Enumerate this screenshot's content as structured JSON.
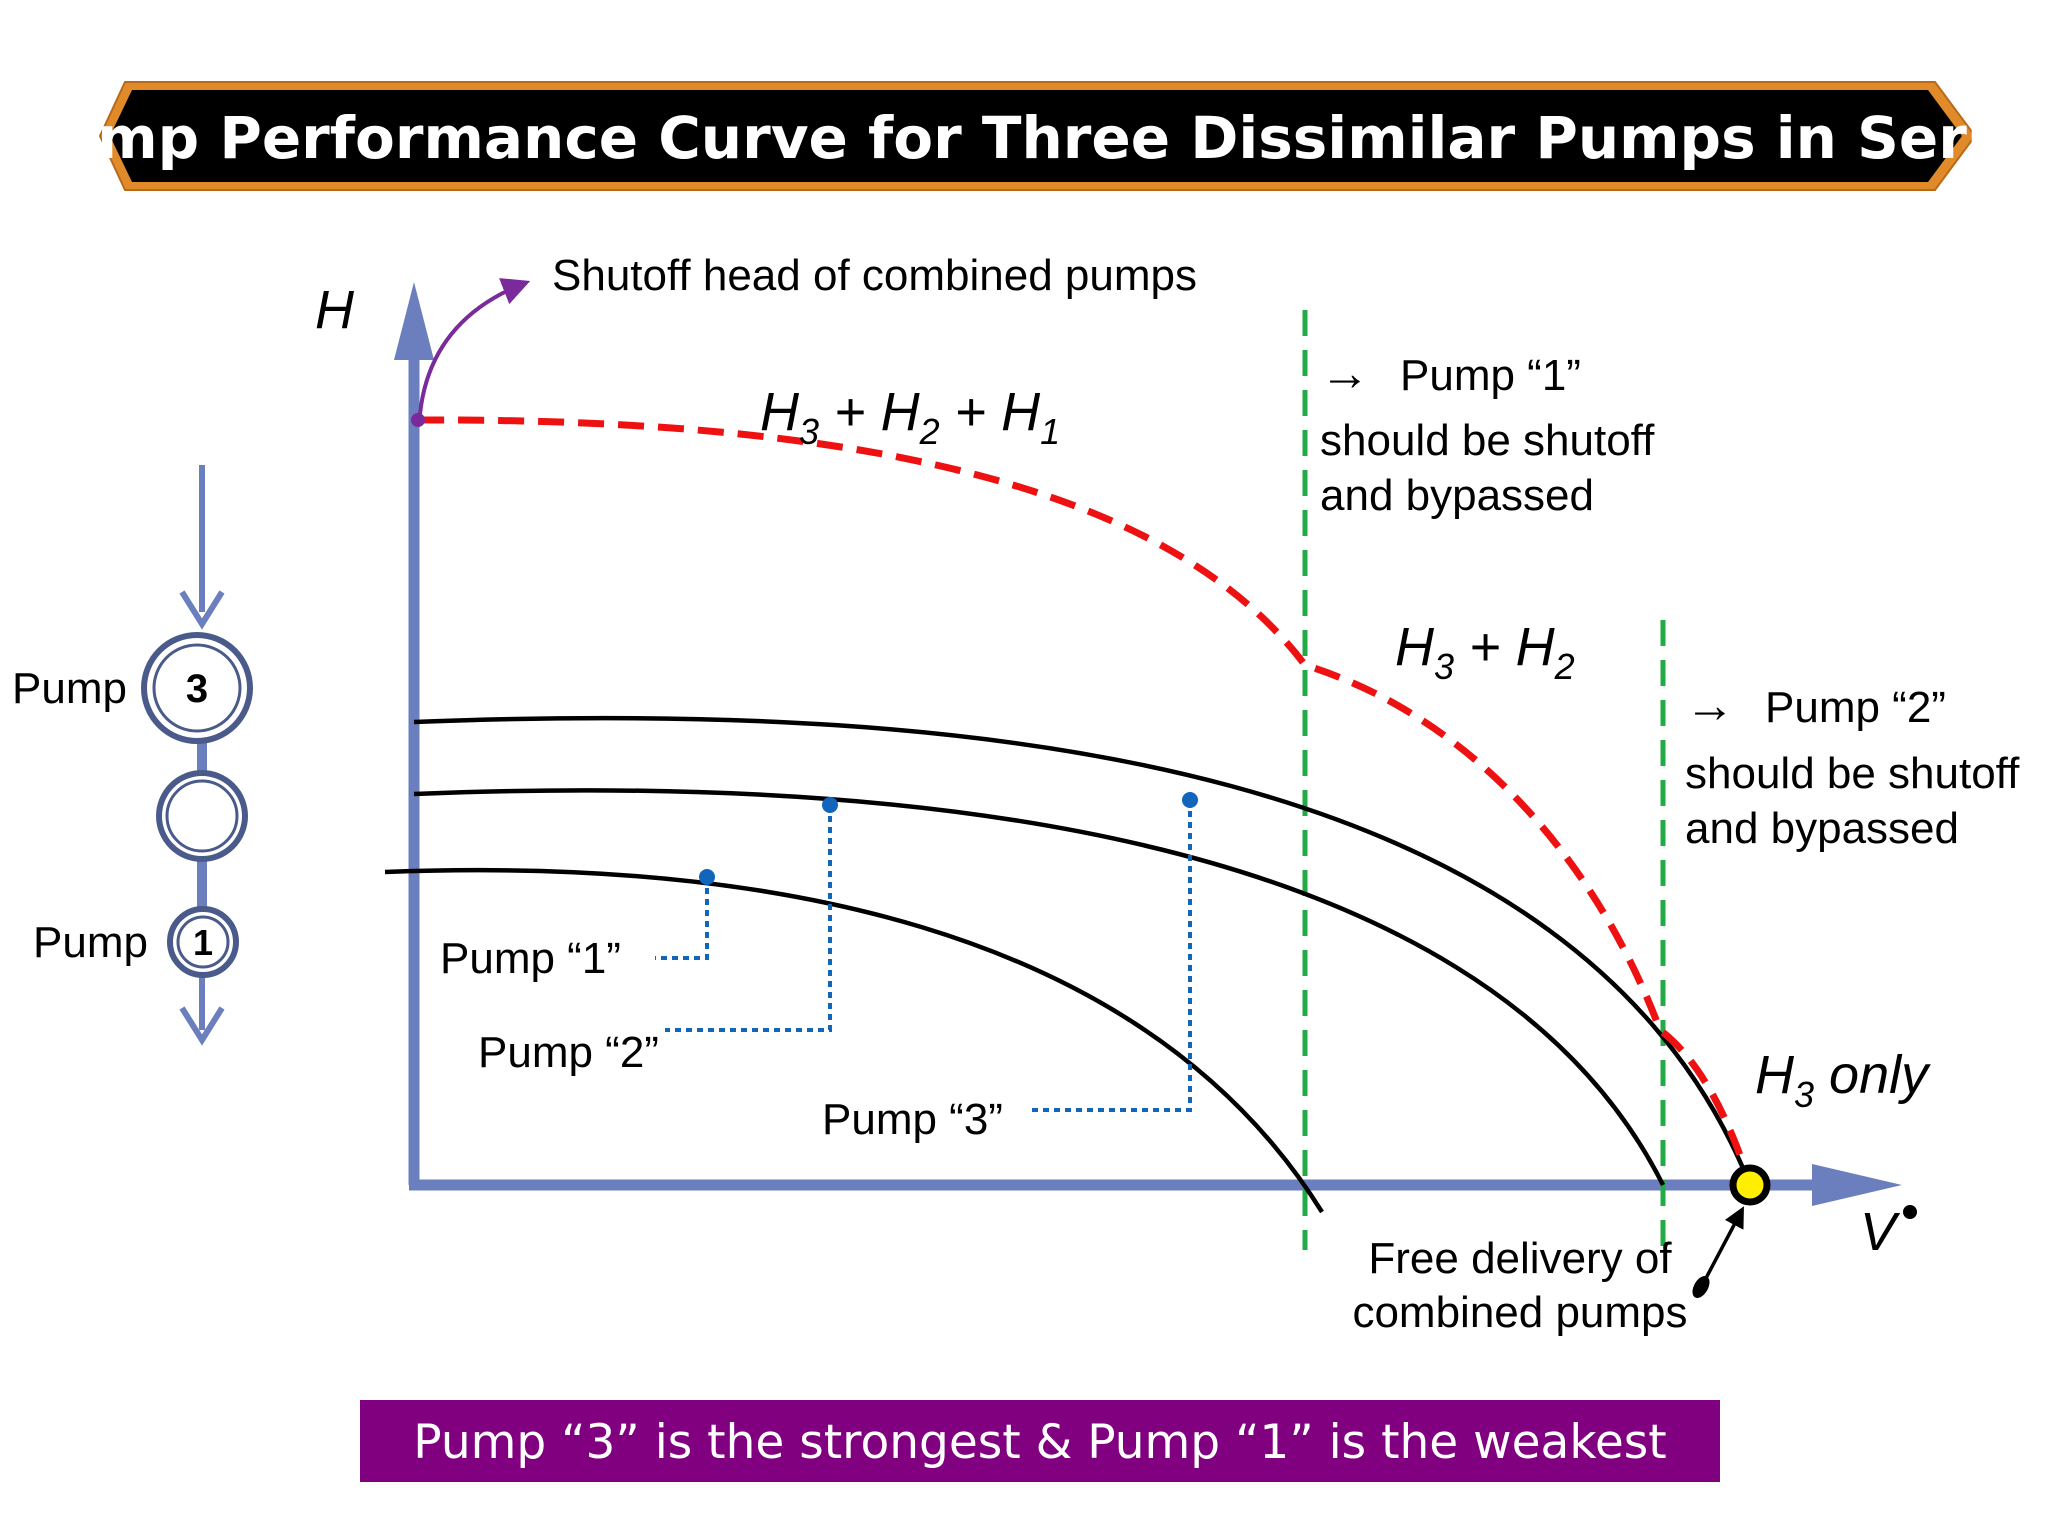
{
  "title": "Pump Performance Curve for Three Dissimilar Pumps in Series",
  "axes": {
    "y_label": "H",
    "x_label": "V"
  },
  "annotations": {
    "shutoff_head": "Shutoff head of combined pumps",
    "free_delivery_line1": "Free delivery of",
    "free_delivery_line2": "combined pumps",
    "region1_arrow": "→",
    "region1_line1": "Pump “1”",
    "region1_line2": "should be shutoff",
    "region1_line3": "and bypassed",
    "region2_arrow": "→",
    "region2_line1": "Pump “2”",
    "region2_line2": "should be shutoff",
    "region2_line3": "and bypassed"
  },
  "curve_labels": {
    "sum3": {
      "a": "H",
      "s1": "3",
      "b": " + H",
      "s2": "2",
      "c": " + H",
      "s3": "1"
    },
    "sum2": {
      "a": "H",
      "s1": "3",
      "b": " + H",
      "s2": "2"
    },
    "h3only": {
      "a": "H",
      "s1": "3",
      "b": " only"
    }
  },
  "pump_labels": {
    "pump1": "Pump “1”",
    "pump2": "Pump “2”",
    "pump3": "Pump “3”"
  },
  "series_diagram": {
    "top_label": "Pump",
    "top_number": "3",
    "middle_number": "",
    "bottom_label": "Pump",
    "bottom_number": "1"
  },
  "banner": "Pump “3” is the strongest & Pump “1” is the weakest",
  "colors": {
    "axis": "#6b7fbf",
    "combined_curve": "#ee1111",
    "cutoff_lines": "#22aa44",
    "leader_lines": "#1166bb",
    "shutoff_arrow": "#7a2a9a",
    "title_fill": "#000000",
    "title_border": "#e08a2a",
    "banner_fill": "#800080",
    "free_delivery_point": "#ffee00"
  }
}
